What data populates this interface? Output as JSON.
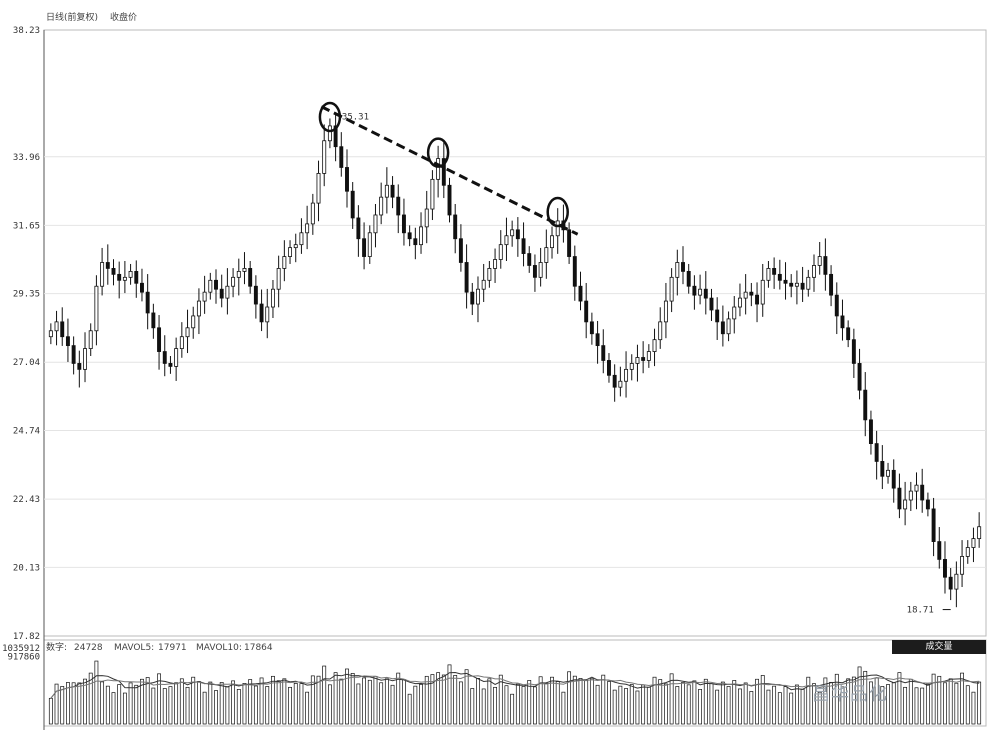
{
  "header": {
    "title": "日线(前复权)",
    "indicator": "收盘价"
  },
  "volume_header": {
    "label": "成交量",
    "vol_label": "数字:",
    "vol": "24728",
    "ma5_label": "MAVOL5:",
    "ma5": "17971",
    "ma10_label": "MAVOL10:",
    "ma10": "17864"
  },
  "watermark": "昌华品化",
  "colors": {
    "candle": "#111111",
    "trend": "#111111",
    "grid": "#e4e4e4"
  },
  "chart_data": [
    {
      "type": "candlestick",
      "title": "",
      "yticks": [
        "38.23",
        "33.96",
        "31.65",
        "29.35",
        "27.04",
        "24.74",
        "22.43",
        "20.13",
        "17.82"
      ],
      "ylim": [
        17.82,
        38.23
      ],
      "grid": true,
      "annotations": [
        {
          "text": "35.31",
          "value": 35.31,
          "kind": "max-price"
        },
        {
          "text": "18.71",
          "value": 18.71,
          "kind": "min-price"
        }
      ],
      "trendline": {
        "style": "dashed",
        "from_value": 35.4,
        "to_value": 31.6
      },
      "circled_peaks": [
        35.3,
        34.1,
        32.1
      ],
      "closes": [
        28.1,
        28.4,
        27.9,
        27.6,
        27.0,
        26.8,
        27.5,
        28.1,
        29.6,
        30.4,
        30.2,
        30.0,
        29.8,
        29.9,
        30.1,
        29.7,
        29.4,
        28.7,
        28.2,
        27.4,
        27.0,
        26.9,
        27.5,
        27.9,
        28.2,
        28.6,
        29.1,
        29.4,
        29.8,
        29.5,
        29.2,
        29.6,
        29.9,
        30.1,
        30.2,
        29.6,
        29.0,
        28.4,
        28.9,
        29.5,
        30.2,
        30.6,
        30.9,
        31.0,
        31.4,
        31.7,
        32.4,
        33.4,
        34.5,
        35.0,
        34.3,
        33.6,
        32.8,
        31.9,
        31.2,
        30.6,
        31.4,
        32.0,
        32.6,
        33.0,
        32.6,
        32.0,
        31.4,
        31.2,
        31.0,
        31.6,
        32.2,
        33.2,
        33.9,
        33.0,
        32.0,
        31.2,
        30.4,
        29.4,
        29.0,
        29.5,
        29.8,
        30.2,
        30.5,
        31.0,
        31.3,
        31.5,
        31.2,
        30.7,
        30.3,
        29.9,
        30.4,
        30.9,
        31.3,
        31.8,
        31.5,
        30.6,
        29.6,
        29.1,
        28.4,
        28.0,
        27.6,
        27.1,
        26.6,
        26.2,
        26.4,
        26.8,
        27.0,
        27.2,
        27.1,
        27.4,
        27.8,
        28.4,
        29.1,
        29.9,
        30.4,
        30.1,
        29.6,
        29.3,
        29.5,
        29.2,
        28.8,
        28.4,
        28.0,
        28.5,
        28.9,
        29.2,
        29.4,
        29.3,
        29.0,
        29.8,
        30.2,
        30.0,
        29.8,
        29.7,
        29.6,
        29.7,
        29.5,
        29.9,
        30.3,
        30.6,
        30.0,
        29.3,
        28.6,
        28.2,
        27.8,
        27.0,
        26.1,
        25.1,
        24.3,
        23.7,
        23.2,
        23.4,
        22.8,
        22.1,
        22.4,
        22.7,
        22.9,
        22.4,
        22.1,
        21.0,
        20.4,
        19.8,
        19.4,
        19.9,
        20.5,
        20.8,
        21.1,
        21.5
      ]
    },
    {
      "type": "bar",
      "title": "",
      "series_label": "成交量",
      "ylim": [
        0,
        1035912
      ],
      "yticks": [
        "1035912",
        "917860"
      ],
      "grid": false
    }
  ]
}
